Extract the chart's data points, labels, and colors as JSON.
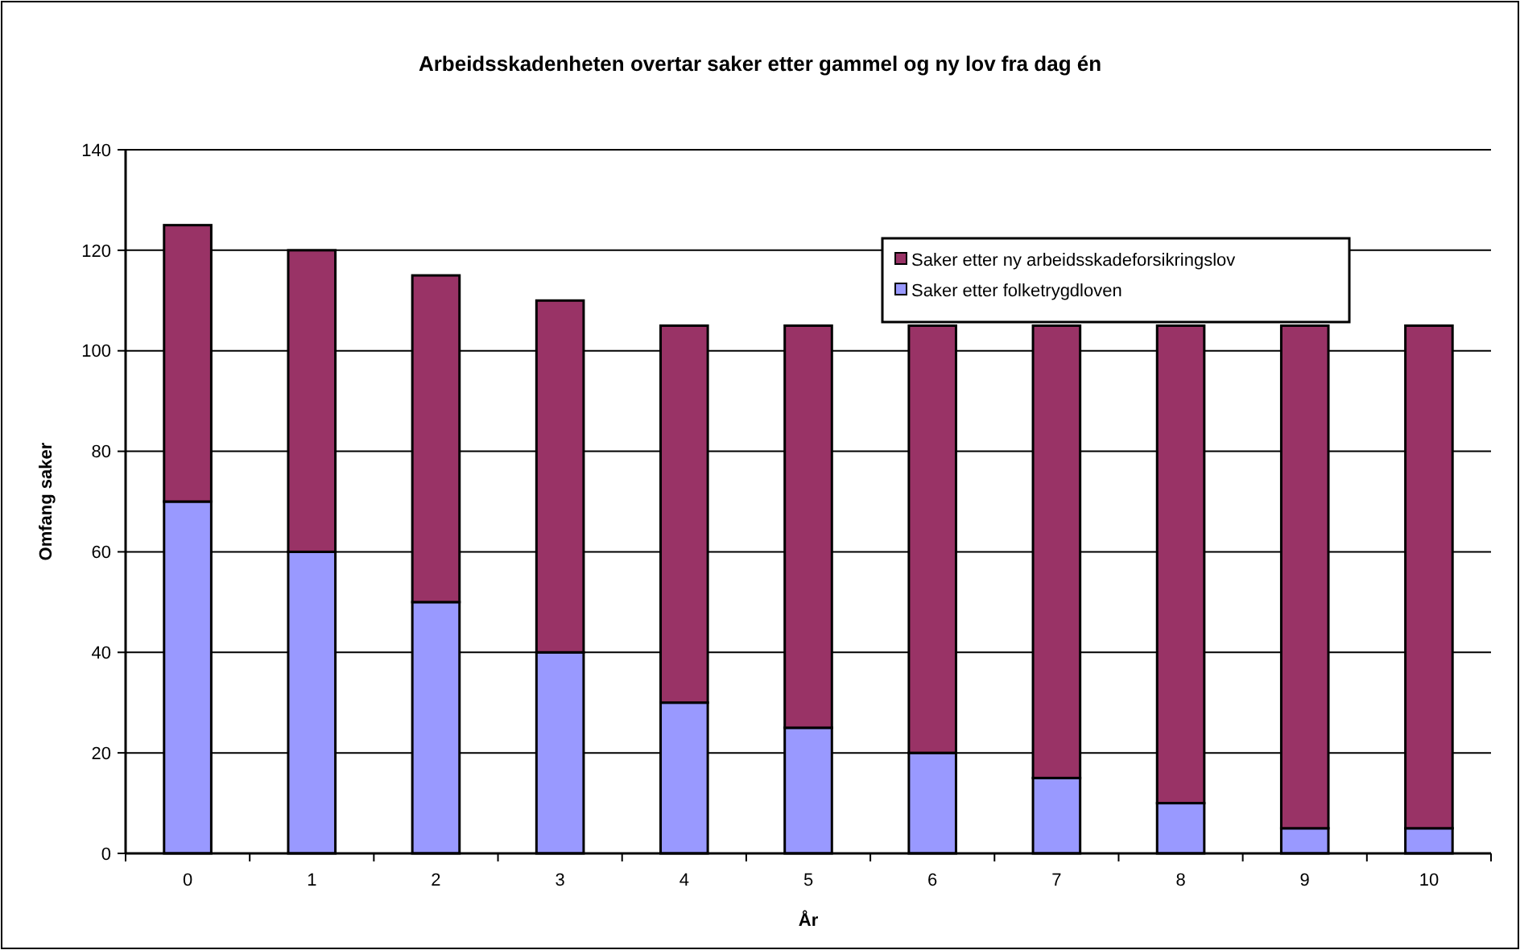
{
  "chart_data": {
    "type": "bar",
    "title": "Arbeidsskadenheten overtar saker etter gammel og ny lov fra dag én",
    "xlabel": "År",
    "ylabel": "Omfang saker",
    "categories": [
      "0",
      "1",
      "2",
      "3",
      "4",
      "5",
      "6",
      "7",
      "8",
      "9",
      "10"
    ],
    "stacked": true,
    "series": [
      {
        "name": "Saker etter folketrygdloven",
        "color": "#9999ff",
        "values": [
          70,
          60,
          50,
          40,
          30,
          25,
          20,
          15,
          10,
          5,
          5
        ]
      },
      {
        "name": "Saker etter ny arbeidsskadeforsikringslov",
        "color": "#993366",
        "values": [
          55,
          60,
          65,
          70,
          75,
          80,
          85,
          90,
          95,
          100,
          100
        ]
      }
    ],
    "ylim": [
      0,
      140
    ],
    "yticks": [
      0,
      20,
      40,
      60,
      80,
      100,
      120,
      140
    ],
    "grid": "y",
    "legend": "top right"
  }
}
